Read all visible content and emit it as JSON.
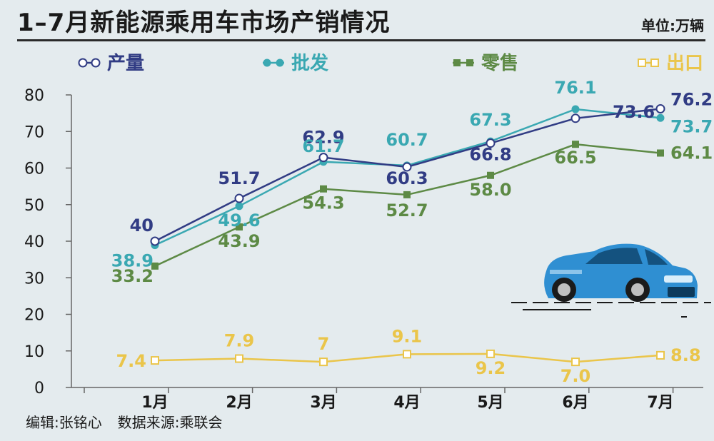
{
  "title": "1–7月新能源乘用车市场产销情况",
  "unit_label": "单位:万辆",
  "footer": {
    "editor": "编辑:张铭心",
    "source": "数据来源:乘联会"
  },
  "colors": {
    "production": "#313c84",
    "wholesale": "#3aa8b2",
    "retail": "#5d8a45",
    "export": "#eac54a",
    "car_body": "#2f8fd2",
    "car_dark": "#14527f"
  },
  "icons": {
    "car": "car-icon"
  },
  "chart_data": {
    "type": "line",
    "title": "1–7月新能源乘用车市场产销情况",
    "xlabel": "",
    "ylabel": "",
    "ylim": [
      0,
      80
    ],
    "yticks": [
      0,
      10,
      20,
      30,
      40,
      50,
      60,
      70,
      80
    ],
    "categories": [
      "1月",
      "2月",
      "3月",
      "4月",
      "5月",
      "6月",
      "7月"
    ],
    "legend_position": "top",
    "grid": false,
    "series": [
      {
        "key": "production",
        "name": "产量",
        "marker": "circle",
        "values": [
          40,
          51.7,
          62.9,
          60.3,
          66.8,
          73.6,
          76.2
        ],
        "labels": [
          "40",
          "51.7",
          "62.9",
          "60.3",
          "66.8",
          "73.6",
          "76.2"
        ]
      },
      {
        "key": "wholesale",
        "name": "批发",
        "marker": "dot",
        "values": [
          38.9,
          49.6,
          61.7,
          60.7,
          67.3,
          76.1,
          73.7
        ],
        "labels": [
          "38.9",
          "49.6",
          "61.7",
          "60.7",
          "67.3",
          "76.1",
          "73.7"
        ]
      },
      {
        "key": "retail",
        "name": "零售",
        "marker": "square",
        "values": [
          33.2,
          43.9,
          54.3,
          52.7,
          58.0,
          66.5,
          64.1
        ],
        "labels": [
          "33.2",
          "43.9",
          "54.3",
          "52.7",
          "58.0",
          "66.5",
          "64.1"
        ]
      },
      {
        "key": "export",
        "name": "出口",
        "marker": "hollow-square",
        "values": [
          7.4,
          7.9,
          7,
          9.1,
          9.2,
          7.0,
          8.8
        ],
        "labels": [
          "7.4",
          "7.9",
          "7",
          "9.1",
          "9.2",
          "7.0",
          "8.8"
        ]
      }
    ]
  }
}
